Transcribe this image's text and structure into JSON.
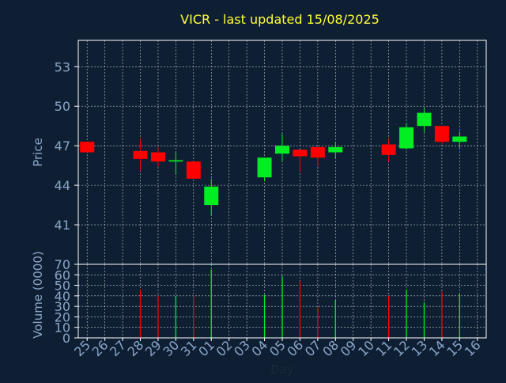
{
  "title": "VICR - last updated 15/08/2025",
  "colors": {
    "background": "#0f1f33",
    "title": "#ffff33",
    "axis_text": "#8aa6c8",
    "frame": "#ffffff",
    "grid": "#ffffff",
    "up": "#00ee22",
    "down": "#ff0000",
    "xlabel": "#1a2a3a"
  },
  "chart_data": [
    {
      "type": "candlestick",
      "title": "VICR - last updated 15/08/2025",
      "ylabel": "Price",
      "ylim": [
        38,
        55
      ],
      "yticks": [
        41,
        44,
        47,
        50,
        53
      ],
      "grid": true,
      "candles": [
        {
          "day": "25",
          "open": 47.3,
          "close": 46.5,
          "high": 47.3,
          "low": 46.5
        },
        {
          "day": "28",
          "open": 46.6,
          "close": 46.0,
          "high": 47.5,
          "low": 45.1
        },
        {
          "day": "29",
          "open": 46.5,
          "close": 45.8,
          "high": 46.9,
          "low": 45.4
        },
        {
          "day": "30",
          "open": 45.8,
          "close": 45.9,
          "high": 46.5,
          "low": 44.8
        },
        {
          "day": "31",
          "open": 45.8,
          "close": 44.5,
          "high": 45.8,
          "low": 44.5
        },
        {
          "day": "01",
          "open": 42.5,
          "close": 43.9,
          "high": 44.5,
          "low": 41.7
        },
        {
          "day": "04",
          "open": 44.6,
          "close": 46.1,
          "high": 46.1,
          "low": 44.3
        },
        {
          "day": "05",
          "open": 46.4,
          "close": 47.0,
          "high": 47.9,
          "low": 45.8
        },
        {
          "day": "06",
          "open": 46.7,
          "close": 46.2,
          "high": 46.7,
          "low": 45.0
        },
        {
          "day": "07",
          "open": 46.9,
          "close": 46.1,
          "high": 46.9,
          "low": 45.4
        },
        {
          "day": "08",
          "open": 46.5,
          "close": 46.9,
          "high": 47.3,
          "low": 46.0
        },
        {
          "day": "11",
          "open": 47.1,
          "close": 46.3,
          "high": 47.5,
          "low": 45.8
        },
        {
          "day": "12",
          "open": 46.8,
          "close": 48.4,
          "high": 48.7,
          "low": 46.7
        },
        {
          "day": "13",
          "open": 48.5,
          "close": 49.5,
          "high": 49.9,
          "low": 48.0
        },
        {
          "day": "14",
          "open": 48.5,
          "close": 47.3,
          "high": 48.5,
          "low": 47.1
        },
        {
          "day": "15",
          "open": 47.3,
          "close": 47.7,
          "high": 48.1,
          "low": 46.8
        }
      ]
    },
    {
      "type": "bar",
      "ylabel": "Volume (0000)",
      "xlabel": "Day",
      "ylim": [
        0,
        70
      ],
      "yticks": [
        0,
        10,
        20,
        30,
        40,
        50,
        60,
        70
      ],
      "grid": true,
      "categories": [
        "25",
        "26",
        "27",
        "28",
        "29",
        "30",
        "31",
        "01",
        "02",
        "03",
        "04",
        "05",
        "06",
        "07",
        "08",
        "09",
        "10",
        "11",
        "12",
        "13",
        "14",
        "15",
        "16"
      ],
      "bars": [
        {
          "day": "28",
          "value": 46,
          "direction": "down"
        },
        {
          "day": "29",
          "value": 40,
          "direction": "down"
        },
        {
          "day": "30",
          "value": 40,
          "direction": "up"
        },
        {
          "day": "31",
          "value": 40,
          "direction": "down"
        },
        {
          "day": "01",
          "value": 65,
          "direction": "up"
        },
        {
          "day": "04",
          "value": 41,
          "direction": "up"
        },
        {
          "day": "05",
          "value": 59,
          "direction": "up"
        },
        {
          "day": "06",
          "value": 54,
          "direction": "down"
        },
        {
          "day": "07",
          "value": 29,
          "direction": "down"
        },
        {
          "day": "08",
          "value": 36,
          "direction": "up"
        },
        {
          "day": "11",
          "value": 40,
          "direction": "down"
        },
        {
          "day": "12",
          "value": 46,
          "direction": "up"
        },
        {
          "day": "13",
          "value": 34,
          "direction": "up"
        },
        {
          "day": "14",
          "value": 44,
          "direction": "down"
        },
        {
          "day": "15",
          "value": 42,
          "direction": "up"
        }
      ]
    }
  ]
}
